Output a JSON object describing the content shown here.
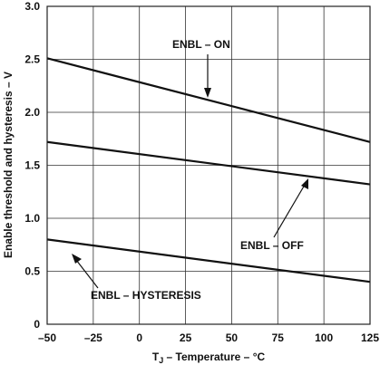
{
  "chart_data": {
    "type": "line",
    "xlabel_main": "T",
    "xlabel_sub": "J",
    "xlabel_rest": " – Temperature – °C",
    "ylabel": "Enable threshold and hysteresis – V",
    "xlim": [
      -50,
      125
    ],
    "ylim": [
      0,
      3.0
    ],
    "x_ticks": [
      -50,
      -25,
      0,
      25,
      50,
      75,
      100,
      125
    ],
    "x_tick_labels": [
      "–50",
      "–25",
      "0",
      "25",
      "50",
      "75",
      "100",
      "125"
    ],
    "y_ticks": [
      0,
      0.5,
      1.0,
      1.5,
      2.0,
      2.5,
      3.0
    ],
    "y_tick_labels": [
      "0",
      "0.5",
      "1.0",
      "1.5",
      "2.0",
      "2.5",
      "3.0"
    ],
    "grid": true,
    "series": [
      {
        "name": "ENBL – ON",
        "x": [
          -50,
          125
        ],
        "y": [
          2.51,
          1.72
        ]
      },
      {
        "name": "ENBL – OFF",
        "x": [
          -50,
          125
        ],
        "y": [
          1.72,
          1.32
        ]
      },
      {
        "name": "ENBL – HYSTERESIS",
        "x": [
          -50,
          125
        ],
        "y": [
          0.8,
          0.4
        ]
      }
    ]
  }
}
